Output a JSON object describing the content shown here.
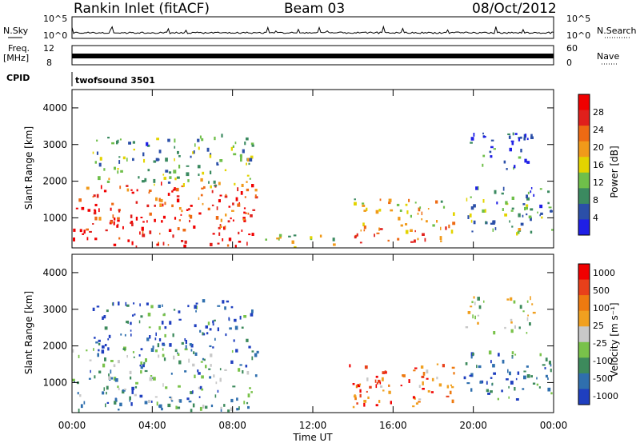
{
  "header": {
    "station": "Rankin Inlet (fitACF)",
    "beam": "Beam 03",
    "date": "08/Oct/2012"
  },
  "strips": {
    "nsky_label": "N.Sky",
    "nsearch_label": "N.Search",
    "freq_label_1": "Freq.",
    "freq_label_2": "[MHz]",
    "nave_label": "Nave",
    "cpid_label": "CPID",
    "cpid_value": "twofsound 3501",
    "left_ticks": [
      "10^5",
      "10^0"
    ],
    "right_ticks": [
      "10^5",
      "10^0"
    ],
    "freq_ticks": [
      "12",
      "8"
    ],
    "nave_ticks": [
      "60",
      "0"
    ]
  },
  "colors": {
    "power_scale": [
      "#1f1fe6",
      "#2b4fa8",
      "#3b8a60",
      "#6fbf4a",
      "#e3d400",
      "#f19a1a",
      "#ee6a13",
      "#e0201c",
      "#f00000"
    ],
    "velocity_scale": [
      "#1f3fbf",
      "#2f6fae",
      "#3d8a5c",
      "#79c24a",
      "#c8c8c8",
      "#f0a020",
      "#ee7a10",
      "#e8401a",
      "#f00000"
    ]
  },
  "chart_data": [
    {
      "type": "heatmap",
      "panel": "power",
      "ylabel": "Slant Range [km]",
      "xlabel": "Time UT",
      "xticks": [
        "00:00",
        "04:00",
        "08:00",
        "12:00",
        "16:00",
        "20:00",
        "00:00"
      ],
      "yticks": [
        "1000",
        "2000",
        "3000",
        "4000"
      ],
      "ylim": [
        180,
        4500
      ],
      "xlim_hours": [
        0,
        24
      ],
      "colorbar": {
        "label": "Power [dB]",
        "ticks": [
          "4",
          "8",
          "12",
          "16",
          "20",
          "24",
          "28"
        ],
        "range": [
          0,
          30
        ]
      },
      "echo_regions": [
        {
          "t0": 0.0,
          "t1": 9.2,
          "r0": 180,
          "r1": 1900,
          "level": 0.85
        },
        {
          "t0": 9.2,
          "t1": 13.0,
          "r0": 180,
          "r1": 500,
          "level": 0.5
        },
        {
          "t0": 13.8,
          "t1": 19.0,
          "r0": 300,
          "r1": 1500,
          "level": 0.6
        },
        {
          "t0": 19.5,
          "t1": 23.9,
          "r0": 500,
          "r1": 1800,
          "level": 0.3
        },
        {
          "t0": 19.5,
          "t1": 23.0,
          "r0": 2300,
          "r1": 3300,
          "level": 0.15
        },
        {
          "t0": 1.0,
          "t1": 9.0,
          "r0": 1800,
          "r1": 3200,
          "level": 0.35
        }
      ]
    },
    {
      "type": "heatmap",
      "panel": "velocity",
      "ylabel": "Slant Range [km]",
      "xlabel": "Time UT",
      "xticks": [
        "00:00",
        "04:00",
        "08:00",
        "12:00",
        "16:00",
        "20:00",
        "00:00"
      ],
      "yticks": [
        "1000",
        "2000",
        "3000",
        "4000"
      ],
      "ylim": [
        180,
        4500
      ],
      "xlim_hours": [
        0,
        24
      ],
      "colorbar": {
        "label": "Velocity [m s⁻¹]",
        "ticks": [
          "1000",
          "500",
          "100",
          "25",
          "-25",
          "-100",
          "-500",
          "-1000"
        ],
        "range": [
          -1000,
          1000
        ]
      },
      "echo_regions": [
        {
          "t0": 0.0,
          "t1": 9.2,
          "r0": 180,
          "r1": 1900,
          "level": 0.3
        },
        {
          "t0": 13.8,
          "t1": 19.0,
          "r0": 300,
          "r1": 1500,
          "level": 0.75
        },
        {
          "t0": 19.5,
          "t1": 23.9,
          "r0": 500,
          "r1": 1800,
          "level": 0.2
        },
        {
          "t0": 19.5,
          "t1": 23.0,
          "r0": 2300,
          "r1": 3300,
          "level": 0.45
        },
        {
          "t0": 1.0,
          "t1": 9.0,
          "r0": 1800,
          "r1": 3200,
          "level": 0.15
        }
      ]
    }
  ]
}
